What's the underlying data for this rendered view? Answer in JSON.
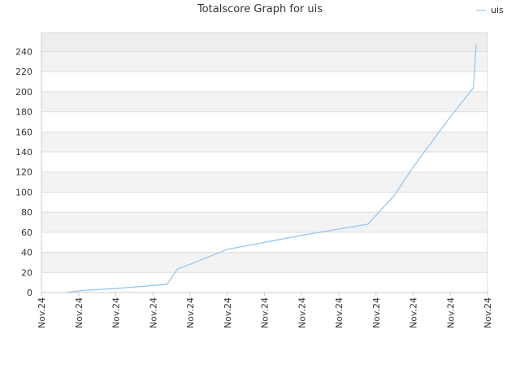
{
  "chart_data": {
    "type": "line",
    "title": "Totalscore Graph for uis",
    "xlabel": "",
    "ylabel": "",
    "x_tick_labels": [
      "Nov.24",
      "Nov.24",
      "Nov.24",
      "Nov.24",
      "Nov.24",
      "Nov.24",
      "Nov.24",
      "Nov.24",
      "Nov.24",
      "Nov.24",
      "Nov.24",
      "Nov.24",
      "Nov.24"
    ],
    "y_ticks": [
      0,
      20,
      40,
      60,
      80,
      100,
      120,
      140,
      160,
      180,
      200,
      220,
      240
    ],
    "ylim": [
      0,
      259
    ],
    "xlim": [
      0,
      12
    ],
    "grid": true,
    "legend_position": "top-right",
    "series": [
      {
        "name": "uis",
        "color": "#90c4f0",
        "points": [
          {
            "x": 0.68,
            "y": 0
          },
          {
            "x": 1.1,
            "y": 2
          },
          {
            "x": 2.0,
            "y": 4
          },
          {
            "x": 3.0,
            "y": 7
          },
          {
            "x": 3.38,
            "y": 8
          },
          {
            "x": 3.65,
            "y": 23
          },
          {
            "x": 5.0,
            "y": 43
          },
          {
            "x": 7.0,
            "y": 57
          },
          {
            "x": 8.78,
            "y": 68
          },
          {
            "x": 9.5,
            "y": 97
          },
          {
            "x": 10.0,
            "y": 125
          },
          {
            "x": 11.0,
            "y": 175
          },
          {
            "x": 11.62,
            "y": 204
          },
          {
            "x": 11.68,
            "y": 240
          },
          {
            "x": 11.7,
            "y": 247
          }
        ]
      }
    ]
  }
}
